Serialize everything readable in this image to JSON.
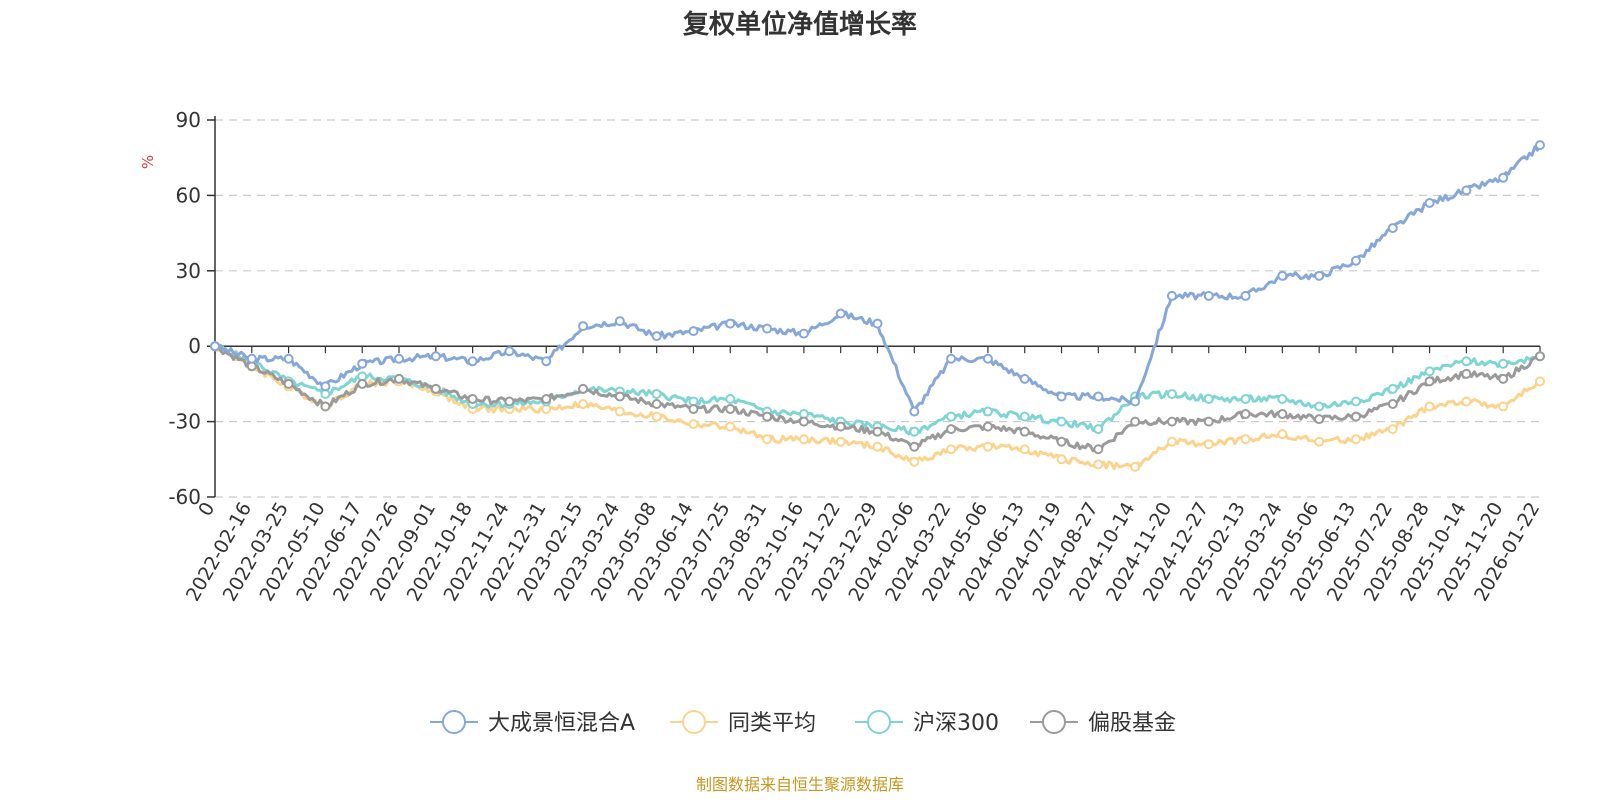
{
  "chart_data": {
    "type": "line",
    "title": "复权单位净值增长率",
    "ylabel": "%",
    "ylim": [
      -60,
      90
    ],
    "yticks": [
      90,
      60,
      30,
      0,
      -30,
      -60
    ],
    "grid": true,
    "legend_position": "bottom",
    "source": "制图数据来自恒生聚源数据库",
    "x_labels": [
      "0",
      "2022-02-16",
      "2022-03-25",
      "2022-05-10",
      "2022-06-17",
      "2022-07-26",
      "2022-09-01",
      "2022-10-18",
      "2022-11-24",
      "2022-12-31",
      "2023-02-15",
      "2023-03-24",
      "2023-05-08",
      "2023-06-14",
      "2023-07-25",
      "2023-08-31",
      "2023-10-16",
      "2023-11-22",
      "2023-12-29",
      "2024-02-06",
      "2024-03-22",
      "2024-05-06",
      "2024-06-13",
      "2024-07-19",
      "2024-08-27",
      "2024-10-14",
      "2024-11-20",
      "2024-12-27",
      "2025-02-13",
      "2025-03-24",
      "2025-05-06",
      "2025-06-13",
      "2025-07-22",
      "2025-08-28",
      "2025-10-14",
      "2025-11-20",
      "2026-01-22"
    ],
    "series": [
      {
        "name": "大成景恒混合A",
        "color": "#86a8d8",
        "values": [
          0,
          -5,
          -5,
          -16,
          -7,
          -5,
          -4,
          -6,
          -2,
          -6,
          8,
          10,
          4,
          6,
          9,
          7,
          5,
          13,
          9,
          -26,
          -5,
          -5,
          -13,
          -20,
          -20,
          -22,
          20,
          20,
          20,
          28,
          28,
          34,
          47,
          57,
          62,
          67,
          80
        ]
      },
      {
        "name": "同类平均",
        "color": "#fcd38c",
        "values": [
          0,
          -8,
          -16,
          -24,
          -15,
          -14,
          -18,
          -25,
          -25,
          -25,
          -23,
          -26,
          -28,
          -31,
          -32,
          -37,
          -37,
          -38,
          -40,
          -46,
          -41,
          -40,
          -41,
          -45,
          -47,
          -48,
          -38,
          -39,
          -37,
          -35,
          -38,
          -37,
          -33,
          -24,
          -22,
          -24,
          -14
        ]
      },
      {
        "name": "沪深300",
        "color": "#7fd4d4",
        "values": [
          0,
          -6,
          -14,
          -19,
          -12,
          -13,
          -17,
          -23,
          -23,
          -22,
          -17,
          -18,
          -19,
          -22,
          -21,
          -26,
          -27,
          -30,
          -32,
          -34,
          -28,
          -26,
          -28,
          -30,
          -33,
          -20,
          -19,
          -21,
          -21,
          -21,
          -24,
          -22,
          -17,
          -10,
          -6,
          -7,
          -4
        ]
      },
      {
        "name": "偏股基金",
        "color": "#9a9a9a",
        "values": [
          0,
          -8,
          -15,
          -24,
          -15,
          -13,
          -17,
          -21,
          -22,
          -21,
          -17,
          -20,
          -23,
          -25,
          -25,
          -28,
          -30,
          -32,
          -34,
          -40,
          -33,
          -32,
          -34,
          -38,
          -41,
          -30,
          -30,
          -30,
          -27,
          -27,
          -29,
          -28,
          -23,
          -14,
          -11,
          -13,
          -4
        ]
      }
    ]
  }
}
